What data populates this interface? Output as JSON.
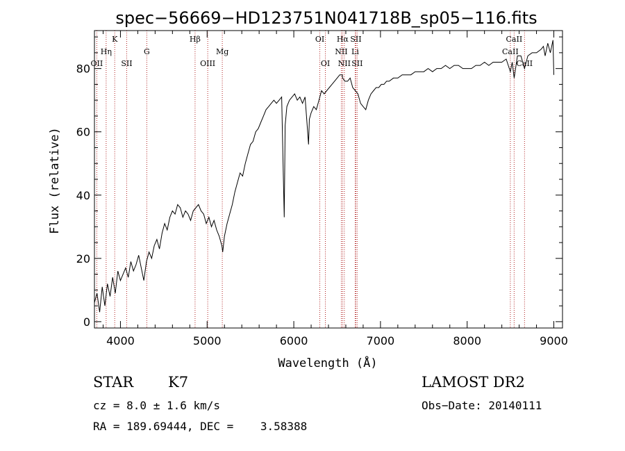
{
  "chart_data": {
    "type": "line",
    "title": "spec−56669−HD123751N041718B_sp05−116.fits",
    "xlabel": "Wavelength (Å)",
    "ylabel": "Flux (relative)",
    "xlim": [
      3700,
      9100
    ],
    "ylim": [
      -2,
      92
    ],
    "xticks": [
      4000,
      5000,
      6000,
      7000,
      8000,
      9000
    ],
    "yticks": [
      0,
      20,
      40,
      60,
      80
    ],
    "grid": false,
    "line_color": "#000000",
    "marker_color": "#b02020",
    "series": [
      {
        "x": [
          3700,
          3730,
          3760,
          3790,
          3820,
          3850,
          3880,
          3910,
          3940,
          3970,
          4000,
          4030,
          4060,
          4090,
          4120,
          4150,
          4180,
          4210,
          4240,
          4270,
          4300,
          4330,
          4360,
          4390,
          4420,
          4450,
          4480,
          4510,
          4540,
          4570,
          4600,
          4630,
          4660,
          4690,
          4720,
          4750,
          4780,
          4810,
          4840,
          4870,
          4900,
          4930,
          4960,
          4990,
          5020,
          5050,
          5080,
          5110,
          5140,
          5170,
          5180,
          5200,
          5230,
          5260,
          5290,
          5320,
          5350,
          5380,
          5410,
          5440,
          5470,
          5500,
          5530,
          5560,
          5590,
          5620,
          5650,
          5680,
          5710,
          5740,
          5770,
          5800,
          5830,
          5860,
          5880,
          5890,
          5895,
          5900,
          5920,
          5950,
          5980,
          6010,
          6040,
          6070,
          6100,
          6130,
          6160,
          6170,
          6180,
          6200,
          6230,
          6260,
          6290,
          6320,
          6350,
          6380,
          6410,
          6440,
          6470,
          6500,
          6530,
          6560,
          6563,
          6590,
          6620,
          6650,
          6680,
          6710,
          6740,
          6770,
          6800,
          6830,
          6860,
          6890,
          6920,
          6950,
          6980,
          7010,
          7040,
          7070,
          7100,
          7150,
          7200,
          7250,
          7300,
          7350,
          7400,
          7450,
          7500,
          7550,
          7600,
          7650,
          7700,
          7750,
          7800,
          7850,
          7900,
          7950,
          8000,
          8050,
          8100,
          8150,
          8200,
          8250,
          8300,
          8350,
          8400,
          8450,
          8498,
          8520,
          8542,
          8580,
          8620,
          8662,
          8700,
          8750,
          8800,
          8850,
          8880,
          8900,
          8930,
          8960,
          8990,
          9000
        ],
        "y": [
          6,
          9,
          3,
          11,
          5,
          12,
          8,
          14,
          9,
          16,
          13,
          15,
          17,
          14,
          19,
          16,
          18,
          21,
          17,
          13,
          19,
          22,
          20,
          24,
          26,
          23,
          28,
          31,
          29,
          33,
          35,
          34,
          37,
          36,
          33,
          35,
          34,
          32,
          35,
          36,
          37,
          35,
          34,
          31,
          33,
          30,
          32,
          29,
          27,
          24,
          22,
          27,
          31,
          34,
          37,
          41,
          44,
          47,
          46,
          50,
          53,
          56,
          57,
          60,
          61,
          63,
          65,
          67,
          68,
          69,
          70,
          69,
          70,
          71,
          45,
          33,
          48,
          62,
          68,
          70,
          71,
          72,
          70,
          71,
          69,
          71,
          60,
          56,
          64,
          66,
          68,
          67,
          70,
          73,
          72,
          73,
          74,
          75,
          76,
          77,
          78,
          78,
          77,
          76,
          76,
          77,
          74,
          73,
          72,
          69,
          68,
          67,
          70,
          72,
          73,
          74,
          74,
          75,
          75,
          76,
          76,
          77,
          77,
          78,
          78,
          78,
          79,
          79,
          79,
          80,
          79,
          80,
          80,
          81,
          80,
          81,
          81,
          80,
          80,
          80,
          81,
          81,
          82,
          81,
          82,
          82,
          82,
          83,
          79,
          82,
          77,
          84,
          84,
          80,
          84,
          85,
          85,
          86,
          87,
          84,
          88,
          85,
          89,
          78
        ]
      }
    ],
    "lines": [
      {
        "label": "OII",
        "x": 3727,
        "row": 3
      },
      {
        "label": "Hη",
        "x": 3835,
        "row": 2
      },
      {
        "label": "K",
        "x": 3934,
        "row": 1
      },
      {
        "label": "SII",
        "x": 4072,
        "row": 3
      },
      {
        "label": "G",
        "x": 4304,
        "row": 2
      },
      {
        "label": "Hβ",
        "x": 4861,
        "row": 1
      },
      {
        "label": "OIII",
        "x": 5007,
        "row": 3
      },
      {
        "label": "Mg",
        "x": 5175,
        "row": 2
      },
      {
        "label": "OI",
        "x": 6300,
        "row": 1
      },
      {
        "label": "OI",
        "x": 6364,
        "row": 3
      },
      {
        "label": "Hα",
        "x": 6563,
        "row": 1
      },
      {
        "label": "NII",
        "x": 6548,
        "row": 2
      },
      {
        "label": "NII",
        "x": 6583,
        "row": 3
      },
      {
        "label": "SII",
        "x": 6716,
        "row": 1
      },
      {
        "label": "Li",
        "x": 6708,
        "row": 2
      },
      {
        "label": "SII",
        "x": 6731,
        "row": 3
      },
      {
        "label": "CaII",
        "x": 8498,
        "row": 2
      },
      {
        "label": "CaII",
        "x": 8542,
        "row": 1
      },
      {
        "label": "CaII",
        "x": 8662,
        "row": 3
      }
    ]
  },
  "info": {
    "star_class": "STAR",
    "subclass": "K7",
    "survey": "LAMOST DR2",
    "cz": "cz = 8.0 ± 1.6 km/s",
    "obs_date": "Obs−Date: 20140111",
    "coords": "RA = 189.69444, DEC =    3.58388"
  }
}
